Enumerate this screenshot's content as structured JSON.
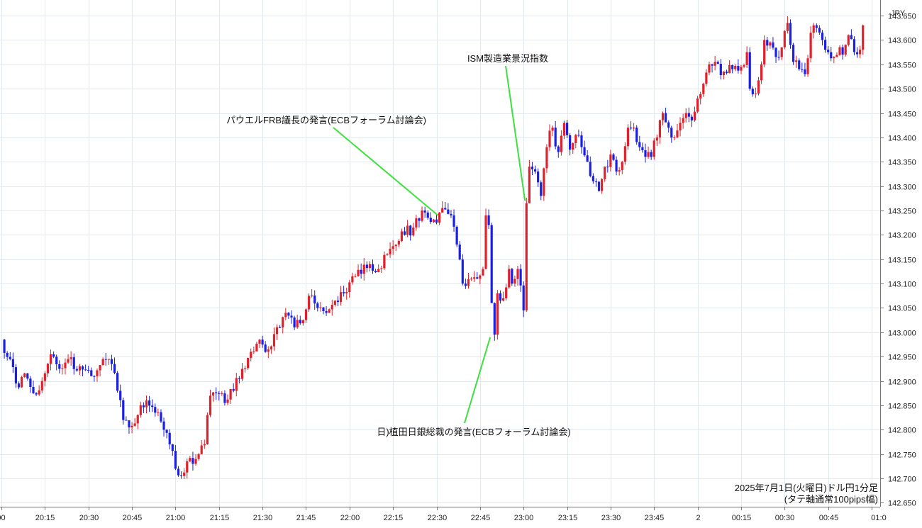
{
  "chart_data": {
    "type": "candlestick",
    "currency_label": "JPY",
    "y_ticks": [
      "143.650",
      "143.600",
      "143.550",
      "143.500",
      "143.450",
      "143.400",
      "143.350",
      "143.300",
      "143.250",
      "143.200",
      "143.150",
      "143.100",
      "143.050",
      "143.000",
      "142.950",
      "142.900",
      "142.850",
      "142.800",
      "142.750",
      "142.700",
      "142.650"
    ],
    "ylim": [
      142.642,
      143.682
    ],
    "x_ticks": [
      ":00",
      "20:15",
      "20:30",
      "20:45",
      "21:00",
      "21:15",
      "21:30",
      "21:45",
      "22:00",
      "22:15",
      "22:30",
      "22:45",
      "23:00",
      "23:15",
      "23:30",
      "23:45",
      "2",
      "00:15",
      "00:30",
      "00:45",
      "01:0"
    ],
    "x_tick_minutes": [
      0,
      15,
      30,
      45,
      60,
      75,
      90,
      105,
      120,
      135,
      150,
      165,
      180,
      195,
      210,
      225,
      240,
      255,
      270,
      285,
      300
    ],
    "note_lines": [
      "2025年7月1日(火曜日)ドル円1分足",
      "(タテ軸通常100pips幅)"
    ],
    "annotations": [
      {
        "text": "パウエルFRB議長の発言(ECBフォーラム討論会)",
        "minute": 150.5,
        "price": 143.24
      },
      {
        "text": "ISM製造業景況指数",
        "minute": 180.5,
        "price": 143.27
      },
      {
        "text": "日)植田日銀総裁の発言(ECBフォーラム討論会)",
        "minute": 168.5,
        "price": 142.99
      }
    ],
    "up_color": "#e0202a",
    "down_color": "#1a1fe6",
    "anchors": [
      [
        0,
        142.985
      ],
      [
        3,
        142.945
      ],
      [
        5,
        142.895
      ],
      [
        9,
        142.905
      ],
      [
        11,
        142.875
      ],
      [
        14,
        142.9
      ],
      [
        17,
        142.955
      ],
      [
        20,
        142.925
      ],
      [
        23,
        142.945
      ],
      [
        27,
        142.93
      ],
      [
        31,
        142.91
      ],
      [
        35,
        142.945
      ],
      [
        38,
        142.935
      ],
      [
        40,
        142.88
      ],
      [
        42,
        142.82
      ],
      [
        44,
        142.805
      ],
      [
        47,
        142.83
      ],
      [
        50,
        142.86
      ],
      [
        53,
        142.835
      ],
      [
        56,
        142.8
      ],
      [
        58,
        142.77
      ],
      [
        60,
        142.72
      ],
      [
        62,
        142.705
      ],
      [
        64,
        142.735
      ],
      [
        66,
        142.73
      ],
      [
        68,
        142.75
      ],
      [
        70,
        142.77
      ],
      [
        72,
        142.87
      ],
      [
        74,
        142.875
      ],
      [
        77,
        142.855
      ],
      [
        80,
        142.88
      ],
      [
        83,
        142.925
      ],
      [
        86,
        142.96
      ],
      [
        89,
        142.985
      ],
      [
        92,
        142.965
      ],
      [
        95,
        143.01
      ],
      [
        98,
        143.04
      ],
      [
        101,
        143.01
      ],
      [
        104,
        143.025
      ],
      [
        106,
        143.075
      ],
      [
        109,
        143.05
      ],
      [
        112,
        143.04
      ],
      [
        115,
        143.065
      ],
      [
        118,
        143.08
      ],
      [
        121,
        143.115
      ],
      [
        124,
        143.12
      ],
      [
        127,
        143.14
      ],
      [
        130,
        143.13
      ],
      [
        133,
        143.16
      ],
      [
        136,
        143.18
      ],
      [
        139,
        143.2
      ],
      [
        142,
        143.215
      ],
      [
        145,
        143.25
      ],
      [
        147,
        143.235
      ],
      [
        150,
        143.225
      ],
      [
        152,
        143.255
      ],
      [
        155,
        143.24
      ],
      [
        157,
        143.18
      ],
      [
        159,
        143.1
      ],
      [
        162,
        143.11
      ],
      [
        164,
        143.11
      ],
      [
        166,
        143.13
      ],
      [
        167,
        143.24
      ],
      [
        168,
        143.22
      ],
      [
        169,
        143.06
      ],
      [
        170,
        142.995
      ],
      [
        171,
        143.08
      ],
      [
        173,
        143.07
      ],
      [
        175,
        143.13
      ],
      [
        176,
        143.1
      ],
      [
        178,
        143.13
      ],
      [
        180,
        143.045
      ],
      [
        181,
        143.265
      ],
      [
        182,
        143.34
      ],
      [
        184,
        143.33
      ],
      [
        186,
        143.28
      ],
      [
        188,
        143.38
      ],
      [
        190,
        143.42
      ],
      [
        192,
        143.37
      ],
      [
        194,
        143.43
      ],
      [
        196,
        143.375
      ],
      [
        198,
        143.405
      ],
      [
        200,
        143.38
      ],
      [
        202,
        143.35
      ],
      [
        204,
        143.31
      ],
      [
        206,
        143.29
      ],
      [
        208,
        143.34
      ],
      [
        210,
        143.365
      ],
      [
        212,
        143.33
      ],
      [
        214,
        143.35
      ],
      [
        216,
        143.42
      ],
      [
        218,
        143.42
      ],
      [
        220,
        143.38
      ],
      [
        222,
        143.36
      ],
      [
        224,
        143.36
      ],
      [
        226,
        143.4
      ],
      [
        228,
        143.45
      ],
      [
        230,
        143.42
      ],
      [
        232,
        143.4
      ],
      [
        234,
        143.43
      ],
      [
        236,
        143.45
      ],
      [
        238,
        143.435
      ],
      [
        240,
        143.48
      ],
      [
        242,
        143.51
      ],
      [
        244,
        143.55
      ],
      [
        246,
        143.555
      ],
      [
        249,
        143.535
      ],
      [
        252,
        143.54
      ],
      [
        255,
        143.545
      ],
      [
        257,
        143.575
      ],
      [
        258,
        143.5
      ],
      [
        260,
        143.49
      ],
      [
        262,
        143.55
      ],
      [
        263,
        143.6
      ],
      [
        265,
        143.595
      ],
      [
        267,
        143.565
      ],
      [
        269,
        143.585
      ],
      [
        271,
        143.635
      ],
      [
        272,
        143.59
      ],
      [
        273,
        143.555
      ],
      [
        275,
        143.54
      ],
      [
        277,
        143.53
      ],
      [
        279,
        143.615
      ],
      [
        281,
        143.625
      ],
      [
        283,
        143.6
      ],
      [
        285,
        143.575
      ],
      [
        287,
        143.565
      ],
      [
        289,
        143.585
      ],
      [
        290,
        143.57
      ],
      [
        292,
        143.61
      ],
      [
        294,
        143.575
      ],
      [
        296,
        143.58
      ],
      [
        297,
        143.63
      ]
    ]
  }
}
